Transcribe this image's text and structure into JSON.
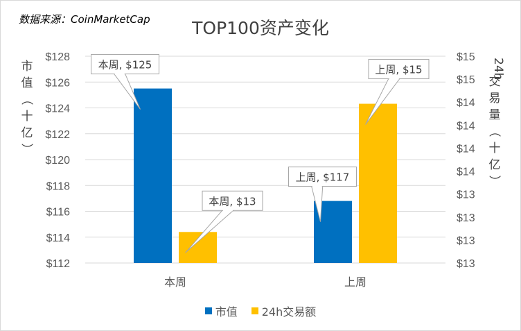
{
  "source_note": "数据来源：CoinMarketCap",
  "chart_data": {
    "type": "bar",
    "title": "TOP100资产变化",
    "categories": [
      "本周",
      "上周"
    ],
    "series": [
      {
        "name": "市值",
        "axis": "left",
        "color": "#0070C0",
        "values": [
          125.5,
          116.8
        ]
      },
      {
        "name": "24h交易额",
        "axis": "right",
        "color": "#FFC000",
        "values": [
          13.3,
          14.54
        ]
      }
    ],
    "y_left": {
      "label": "市值（十亿）",
      "ylim": [
        112,
        128
      ],
      "ticks": [
        "$112",
        "$114",
        "$116",
        "$118",
        "$120",
        "$122",
        "$124",
        "$126",
        "$128"
      ]
    },
    "y_right": {
      "label": "24h交易量（十亿）",
      "ylim": [
        13.0,
        15.0
      ],
      "ticks": [
        "$13",
        "$13",
        "$13",
        "$13",
        "$14",
        "$14",
        "$14",
        "$14",
        "$15",
        "$15"
      ]
    },
    "data_labels": [
      {
        "series": 0,
        "category": 0,
        "text": "本周, $125"
      },
      {
        "series": 1,
        "category": 0,
        "text": "本周, $13"
      },
      {
        "series": 0,
        "category": 1,
        "text": "上周, $117"
      },
      {
        "series": 1,
        "category": 1,
        "text": "上周, $15"
      }
    ],
    "grid": true,
    "legend_position": "bottom"
  }
}
